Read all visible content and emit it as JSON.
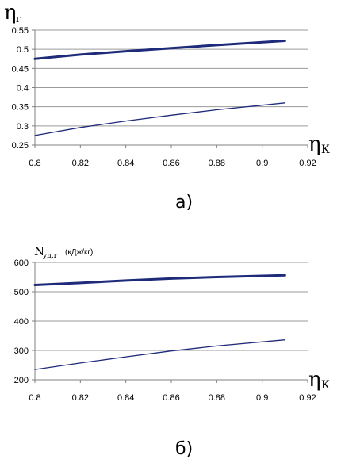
{
  "chart_data": [
    {
      "type": "line",
      "panel_label": "а)",
      "ylabel": {
        "symbol": "η",
        "sub": "г"
      },
      "xlabel": {
        "symbol": "η",
        "sub": "К"
      },
      "x": [
        0.8,
        0.82,
        0.84,
        0.86,
        0.88,
        0.91
      ],
      "xlim": [
        0.8,
        0.92
      ],
      "ylim": [
        0.25,
        0.55
      ],
      "x_ticks": [
        "0.8",
        "0.82",
        "0.84",
        "0.86",
        "0.88",
        "0.9",
        "0.92"
      ],
      "y_ticks": [
        "0.25",
        "0.3",
        "0.35",
        "0.4",
        "0.45",
        "0.5",
        "0.55"
      ],
      "grid": "horizontal",
      "series": [
        {
          "values": [
            0.475,
            0.486,
            0.495,
            0.503,
            0.511,
            0.522
          ],
          "style": "thick"
        },
        {
          "values": [
            0.275,
            0.296,
            0.313,
            0.328,
            0.342,
            0.36
          ],
          "style": "thin"
        }
      ],
      "colors": {
        "line": "#1e2a7a",
        "grid": "#9a9a9a",
        "axis": "#808080"
      }
    },
    {
      "type": "line",
      "panel_label": "б)",
      "ylabel": {
        "symbol": "N",
        "sub": "уд.г",
        "text": "(кДж/кг)"
      },
      "xlabel": {
        "symbol": "η",
        "sub": "К"
      },
      "x": [
        0.8,
        0.82,
        0.84,
        0.86,
        0.88,
        0.91
      ],
      "xlim": [
        0.8,
        0.92
      ],
      "ylim": [
        200,
        600
      ],
      "x_ticks": [
        "0.8",
        "0.82",
        "0.84",
        "0.86",
        "0.88",
        "0.9",
        "0.92"
      ],
      "y_ticks": [
        "200",
        "300",
        "400",
        "500",
        "600"
      ],
      "grid": "horizontal",
      "series": [
        {
          "values": [
            523,
            530,
            538,
            545,
            550,
            556
          ],
          "style": "thick"
        },
        {
          "values": [
            235,
            257,
            278,
            298,
            315,
            336
          ],
          "style": "thin"
        }
      ],
      "colors": {
        "line": "#1e2a7a",
        "grid": "#9a9a9a",
        "axis": "#808080"
      }
    }
  ]
}
